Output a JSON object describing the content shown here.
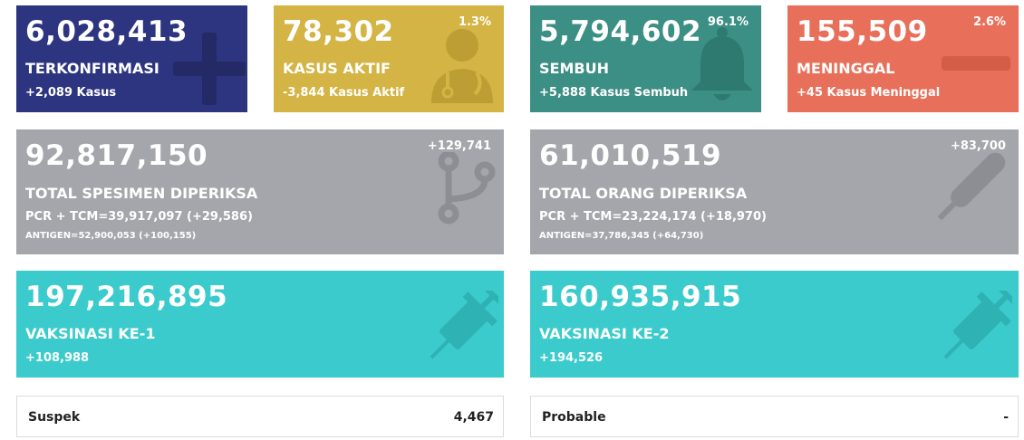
{
  "colors": {
    "confirmed": "#2d3580",
    "active": "#d3b444",
    "recovered": "#3c8f84",
    "death": "#e8705a",
    "specimen": "#a4a6ab",
    "vaccine": "#3ccbcc"
  },
  "confirmed": {
    "value": "6,028,413",
    "label": "TERKONFIRMASI",
    "delta": "+2,089 Kasus",
    "icon": "plus-icon"
  },
  "active": {
    "value": "78,302",
    "label": "KASUS AKTIF",
    "delta": "-3,844 Kasus Aktif",
    "percent": "1.3%",
    "icon": "doctor-icon"
  },
  "recovered": {
    "value": "5,794,602",
    "label": "SEMBUH",
    "delta": "+5,888 Kasus Sembuh",
    "percent": "96.1%",
    "icon": "bell-icon"
  },
  "death": {
    "value": "155,509",
    "label": "MENINGGAL",
    "delta": "+45 Kasus Meninggal",
    "percent": "2.6%",
    "icon": "minus-icon"
  },
  "specimen": {
    "value": "92,817,150",
    "label": "TOTAL SPESIMEN DIPERIKSA",
    "delta": "+129,741",
    "pcr": "PCR + TCM=39,917,097 (+29,586)",
    "antigen": "ANTIGEN=52,900,053 (+100,155)",
    "icon": "branch-icon"
  },
  "people": {
    "value": "61,010,519",
    "label": "TOTAL ORANG DIPERIKSA",
    "delta": "+83,700",
    "pcr": "PCR + TCM=23,224,174 (+18,970)",
    "antigen": "ANTIGEN=37,786,345 (+64,730)",
    "icon": "thermometer-icon"
  },
  "vaccine1": {
    "value": "197,216,895",
    "label": "VAKSINASI KE-1",
    "delta": "+108,988",
    "icon": "syringe-icon"
  },
  "vaccine2": {
    "value": "160,935,915",
    "label": "VAKSINASI KE-2",
    "delta": "+194,526",
    "icon": "syringe-icon"
  },
  "suspect": {
    "label": "Suspek",
    "value": "4,467"
  },
  "probable": {
    "label": "Probable",
    "value": "-"
  }
}
